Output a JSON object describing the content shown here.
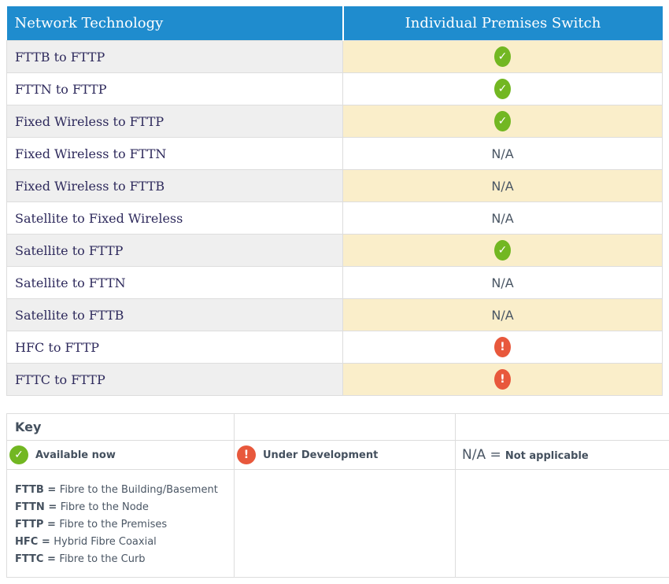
{
  "main_table": {
    "headers": [
      "Network Technology",
      "Individual Premises Switch"
    ],
    "na_label": "N/A",
    "rows": [
      {
        "tech": "FTTB to FTTP",
        "status": "available"
      },
      {
        "tech": "FTTN to FTTP",
        "status": "available"
      },
      {
        "tech": "Fixed Wireless to FTTP",
        "status": "available"
      },
      {
        "tech": "Fixed Wireless to FTTN",
        "status": "na"
      },
      {
        "tech": "Fixed Wireless to FTTB",
        "status": "na"
      },
      {
        "tech": "Satellite to Fixed Wireless",
        "status": "na"
      },
      {
        "tech": "Satellite to FTTP",
        "status": "available"
      },
      {
        "tech": "Satellite to FTTN",
        "status": "na"
      },
      {
        "tech": "Satellite to FTTB",
        "status": "na"
      },
      {
        "tech": "HFC to FTTP",
        "status": "under_development"
      },
      {
        "tech": "FTTC to FTTP",
        "status": "under_development"
      }
    ]
  },
  "key_table": {
    "title": "Key",
    "available": {
      "icon": "check-icon",
      "label": "Available now"
    },
    "under_development": {
      "icon": "exclamation-icon",
      "label": "Under Development"
    },
    "not_applicable": {
      "prefix": "N/A =",
      "label": "Not applicable"
    },
    "definitions": [
      {
        "abbr": "FTTB",
        "text": "Fibre to the Building/Basement"
      },
      {
        "abbr": "FTTN",
        "text": "Fibre to the Node"
      },
      {
        "abbr": "FTTP",
        "text": "Fibre to the Premises"
      },
      {
        "abbr": "HFC",
        "text": "Hybrid Fibre Coaxial"
      },
      {
        "abbr": "FTTC",
        "text": "Fibre to the Curb"
      }
    ]
  },
  "icons": {
    "check_glyph": "✓",
    "warning_glyph": "!"
  },
  "colors": {
    "header_blue": "#1f8cce",
    "row_gray": "#efefef",
    "row_cream": "#faeeca",
    "available_green": "#72b722",
    "development_orange": "#e8583c",
    "tech_text_navy": "#2e2a5c",
    "body_text_slate": "#4a5664",
    "border": "#dddddd"
  }
}
